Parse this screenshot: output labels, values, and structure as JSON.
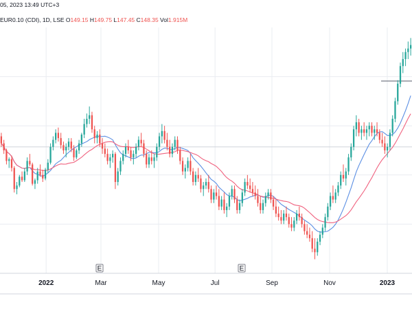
{
  "header": {
    "line1": "05, 2023 13:49 UTC+3",
    "symbol": "EUR0.10 (CDI), 1D, LSE",
    "o_label": "O",
    "o_value": "149.15",
    "h_label": "H",
    "h_value": "149.75",
    "l_label": "L",
    "l_value": "147.45",
    "c_label": "C",
    "c_value": "148.35",
    "vol_label": "Vol",
    "vol_value": "1.915M"
  },
  "chart_data": {
    "type": "candlestick",
    "x_tick_labels": [
      "2022",
      "Mar",
      "May",
      "Jul",
      "Sep",
      "Nov",
      "2023"
    ],
    "earnings_marker_label": "E",
    "earnings_markers_at": [
      "Mar",
      "Aug"
    ],
    "moving_averages": [
      {
        "color": "#5b8fe3"
      },
      {
        "color": "#f0627f"
      }
    ],
    "colors": {
      "up": "#26a69a",
      "down": "#ef5350",
      "grid": "#e9ecf1"
    },
    "grid": true,
    "horizontal_level_line": true,
    "candles": [
      [
        128,
        130,
        122,
        124
      ],
      [
        124,
        126,
        118,
        120
      ],
      [
        120,
        121,
        112,
        114
      ],
      [
        114,
        116,
        110,
        115
      ],
      [
        115,
        117,
        108,
        110
      ],
      [
        110,
        111,
        96,
        98
      ],
      [
        98,
        102,
        95,
        100
      ],
      [
        100,
        106,
        99,
        105
      ],
      [
        105,
        108,
        102,
        103
      ],
      [
        103,
        110,
        102,
        108
      ],
      [
        108,
        116,
        106,
        114
      ],
      [
        114,
        118,
        111,
        112
      ],
      [
        112,
        113,
        100,
        101
      ],
      [
        101,
        104,
        98,
        103
      ],
      [
        103,
        110,
        101,
        108
      ],
      [
        108,
        112,
        105,
        106
      ],
      [
        106,
        109,
        102,
        104
      ],
      [
        104,
        110,
        103,
        109
      ],
      [
        109,
        115,
        107,
        113
      ],
      [
        113,
        124,
        112,
        122
      ],
      [
        122,
        128,
        120,
        126
      ],
      [
        126,
        132,
        124,
        130
      ],
      [
        130,
        133,
        125,
        127
      ],
      [
        127,
        130,
        121,
        123
      ],
      [
        123,
        125,
        118,
        120
      ],
      [
        120,
        124,
        116,
        122
      ],
      [
        122,
        127,
        120,
        125
      ],
      [
        125,
        127,
        119,
        121
      ],
      [
        121,
        123,
        114,
        116
      ],
      [
        116,
        121,
        115,
        120
      ],
      [
        120,
        126,
        118,
        124
      ],
      [
        124,
        130,
        122,
        129
      ],
      [
        129,
        138,
        127,
        135
      ],
      [
        135,
        141,
        133,
        138
      ],
      [
        138,
        145,
        135,
        140
      ],
      [
        140,
        142,
        130,
        132
      ],
      [
        132,
        134,
        124,
        127
      ],
      [
        127,
        131,
        124,
        129
      ],
      [
        129,
        132,
        122,
        124
      ],
      [
        124,
        127,
        118,
        121
      ],
      [
        121,
        124,
        116,
        118
      ],
      [
        118,
        121,
        112,
        114
      ],
      [
        114,
        118,
        110,
        116
      ],
      [
        116,
        120,
        113,
        118
      ],
      [
        118,
        119,
        98,
        102
      ],
      [
        102,
        110,
        100,
        108
      ],
      [
        108,
        116,
        106,
        114
      ],
      [
        114,
        120,
        112,
        118
      ],
      [
        118,
        124,
        116,
        122
      ],
      [
        122,
        126,
        118,
        120
      ],
      [
        120,
        122,
        114,
        116
      ],
      [
        116,
        120,
        112,
        118
      ],
      [
        118,
        124,
        116,
        122
      ],
      [
        122,
        128,
        120,
        126
      ],
      [
        126,
        130,
        122,
        124
      ],
      [
        124,
        126,
        116,
        118
      ],
      [
        118,
        120,
        110,
        112
      ],
      [
        112,
        118,
        110,
        116
      ],
      [
        116,
        120,
        112,
        114
      ],
      [
        114,
        118,
        110,
        116
      ],
      [
        116,
        124,
        114,
        122
      ],
      [
        122,
        130,
        120,
        128
      ],
      [
        128,
        135,
        124,
        131
      ],
      [
        131,
        134,
        124,
        126
      ],
      [
        126,
        130,
        120,
        122
      ],
      [
        122,
        126,
        116,
        118
      ],
      [
        118,
        124,
        116,
        122
      ],
      [
        122,
        128,
        120,
        126
      ],
      [
        126,
        128,
        118,
        120
      ],
      [
        120,
        122,
        112,
        114
      ],
      [
        114,
        116,
        106,
        108
      ],
      [
        108,
        112,
        104,
        110
      ],
      [
        110,
        116,
        108,
        114
      ],
      [
        114,
        118,
        106,
        108
      ],
      [
        108,
        110,
        100,
        102
      ],
      [
        102,
        108,
        100,
        106
      ],
      [
        106,
        110,
        102,
        104
      ],
      [
        104,
        106,
        96,
        98
      ],
      [
        98,
        102,
        94,
        100
      ],
      [
        100,
        104,
        98,
        102
      ],
      [
        102,
        106,
        96,
        98
      ],
      [
        98,
        100,
        90,
        92
      ],
      [
        92,
        98,
        90,
        96
      ],
      [
        96,
        100,
        92,
        94
      ],
      [
        94,
        98,
        86,
        88
      ],
      [
        88,
        94,
        86,
        92
      ],
      [
        92,
        96,
        84,
        86
      ],
      [
        86,
        90,
        82,
        88
      ],
      [
        88,
        96,
        86,
        94
      ],
      [
        94,
        100,
        92,
        98
      ],
      [
        98,
        100,
        90,
        92
      ],
      [
        92,
        94,
        84,
        86
      ],
      [
        86,
        92,
        84,
        90
      ],
      [
        90,
        98,
        88,
        96
      ],
      [
        96,
        104,
        94,
        102
      ],
      [
        102,
        106,
        98,
        100
      ],
      [
        100,
        104,
        96,
        98
      ],
      [
        98,
        102,
        94,
        96
      ],
      [
        96,
        100,
        92,
        94
      ],
      [
        94,
        98,
        88,
        90
      ],
      [
        90,
        94,
        84,
        86
      ],
      [
        86,
        92,
        84,
        90
      ],
      [
        90,
        96,
        88,
        94
      ],
      [
        94,
        98,
        92,
        96
      ],
      [
        96,
        98,
        90,
        92
      ],
      [
        92,
        94,
        86,
        88
      ],
      [
        88,
        92,
        82,
        84
      ],
      [
        84,
        88,
        80,
        82
      ],
      [
        82,
        86,
        78,
        80
      ],
      [
        80,
        86,
        78,
        84
      ],
      [
        84,
        88,
        80,
        82
      ],
      [
        82,
        84,
        76,
        78
      ],
      [
        78,
        82,
        74,
        76
      ],
      [
        76,
        82,
        74,
        80
      ],
      [
        80,
        86,
        78,
        84
      ],
      [
        84,
        88,
        80,
        82
      ],
      [
        82,
        84,
        76,
        78
      ],
      [
        78,
        80,
        72,
        74
      ],
      [
        74,
        78,
        70,
        72
      ],
      [
        72,
        76,
        68,
        70
      ],
      [
        70,
        74,
        62,
        64
      ],
      [
        64,
        70,
        58,
        62
      ],
      [
        62,
        70,
        60,
        68
      ],
      [
        68,
        74,
        66,
        72
      ],
      [
        72,
        78,
        70,
        76
      ],
      [
        76,
        84,
        74,
        82
      ],
      [
        82,
        90,
        80,
        88
      ],
      [
        88,
        96,
        86,
        94
      ],
      [
        94,
        100,
        90,
        92
      ],
      [
        92,
        98,
        90,
        96
      ],
      [
        96,
        102,
        94,
        100
      ],
      [
        100,
        108,
        98,
        106
      ],
      [
        106,
        112,
        102,
        104
      ],
      [
        104,
        110,
        100,
        108
      ],
      [
        108,
        118,
        106,
        116
      ],
      [
        116,
        124,
        114,
        122
      ],
      [
        122,
        134,
        120,
        132
      ],
      [
        132,
        140,
        128,
        136
      ],
      [
        136,
        138,
        128,
        130
      ],
      [
        130,
        134,
        126,
        132
      ],
      [
        132,
        136,
        128,
        130
      ],
      [
        130,
        134,
        126,
        132
      ],
      [
        132,
        136,
        128,
        134
      ],
      [
        134,
        136,
        128,
        130
      ],
      [
        130,
        134,
        126,
        132
      ],
      [
        132,
        136,
        128,
        130
      ],
      [
        130,
        132,
        124,
        126
      ],
      [
        126,
        130,
        122,
        124
      ],
      [
        124,
        128,
        118,
        120
      ],
      [
        120,
        124,
        116,
        122
      ],
      [
        122,
        132,
        120,
        130
      ],
      [
        130,
        140,
        128,
        138
      ],
      [
        138,
        150,
        136,
        148
      ],
      [
        148,
        160,
        146,
        158
      ],
      [
        158,
        170,
        156,
        168
      ],
      [
        168,
        176,
        164,
        172
      ],
      [
        172,
        178,
        168,
        176
      ],
      [
        176,
        182,
        172,
        178
      ],
      [
        178,
        184,
        174,
        180
      ]
    ]
  }
}
